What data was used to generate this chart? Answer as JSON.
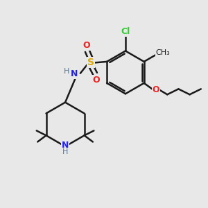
{
  "bg_color": "#e8e8e8",
  "bond_color": "#1a1a1a",
  "bond_width": 1.8,
  "atom_colors": {
    "Cl": "#33cc33",
    "S": "#ddaa00",
    "O": "#ee2222",
    "N": "#2222ee",
    "H": "#557799",
    "C": "#1a1a1a"
  }
}
